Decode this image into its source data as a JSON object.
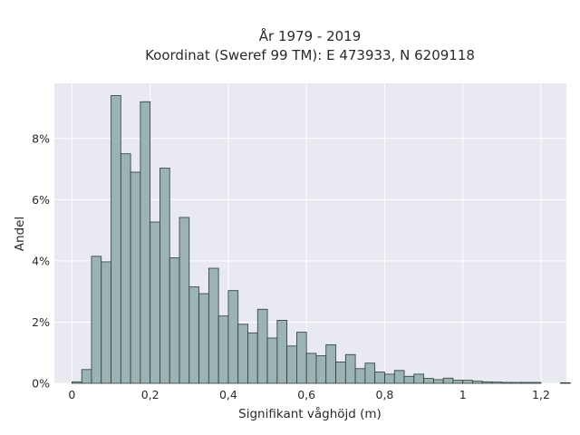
{
  "chart_data": {
    "type": "bar",
    "title": [
      "År 1979 - 2019",
      "Koordinat (Sweref 99 TM): E 473933, N 6209118"
    ],
    "xlabel": "Signifikant våghöjd (m)",
    "ylabel": "Andel",
    "xlim": [
      -0.045,
      1.265
    ],
    "ylim": [
      0,
      9.8
    ],
    "x_ticks": [
      {
        "value": 0,
        "label": "0"
      },
      {
        "value": 0.2,
        "label": "0,2"
      },
      {
        "value": 0.4,
        "label": "0,4"
      },
      {
        "value": 0.6,
        "label": "0,6"
      },
      {
        "value": 0.8,
        "label": "0,8"
      },
      {
        "value": 1.0,
        "label": "1"
      },
      {
        "value": 1.2,
        "label": "1,2"
      }
    ],
    "y_ticks": [
      {
        "value": 0,
        "label": "0%"
      },
      {
        "value": 2,
        "label": "2%"
      },
      {
        "value": 4,
        "label": "4%"
      },
      {
        "value": 6,
        "label": "6%"
      },
      {
        "value": 8,
        "label": "8%"
      }
    ],
    "bin_start": 0.0,
    "bin_width": 0.025,
    "values": [
      0.05,
      0.45,
      4.15,
      3.97,
      9.4,
      7.5,
      6.9,
      9.2,
      5.27,
      7.03,
      4.1,
      5.42,
      3.15,
      2.93,
      3.76,
      2.2,
      3.03,
      1.93,
      1.65,
      2.42,
      1.48,
      2.06,
      1.22,
      1.67,
      0.98,
      0.9,
      1.26,
      0.7,
      0.94,
      0.48,
      0.66,
      0.37,
      0.3,
      0.42,
      0.23,
      0.3,
      0.16,
      0.12,
      0.17,
      0.1,
      0.1,
      0.07,
      0.05,
      0.04,
      0.03,
      0.03,
      0.03,
      0.03,
      0.0,
      0.0,
      0.02
    ],
    "grid": true,
    "colors": {
      "bar_fill": "#9bb3b3",
      "bar_edge": "#2d3a3a",
      "plot_bg": "#e9e9f1",
      "grid": "#ffffff"
    }
  }
}
